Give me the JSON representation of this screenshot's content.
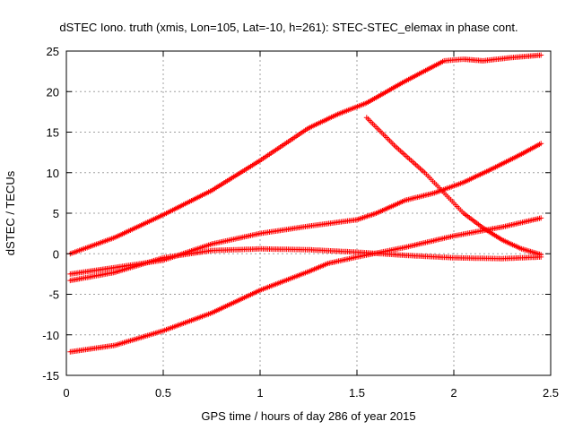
{
  "chart_data": {
    "type": "scatter",
    "title": "dSTEC Iono. truth (xmis, Lon=105, Lat=-10, h=261): STEC-STEC_elemax in phase cont.",
    "xlabel": "GPS time / hours of day 286 of year 2015",
    "ylabel": "dSTEC  / TECUs",
    "xlim": [
      0,
      2.5
    ],
    "ylim": [
      -15,
      25
    ],
    "xticks": [
      "0",
      "0.5",
      "1",
      "1.5",
      "2",
      "2.5"
    ],
    "yticks": [
      "-15",
      "-10",
      "-5",
      "0",
      "5",
      "10",
      "15",
      "20",
      "25"
    ],
    "grid": true,
    "marker": "+",
    "color": "#ff0000",
    "series": [
      {
        "x": [
          0.02,
          0.25,
          0.5,
          0.75,
          1.0,
          1.25,
          1.4,
          1.55,
          1.75,
          1.95,
          2.05,
          2.15,
          2.3,
          2.45
        ],
        "values": [
          0,
          2,
          4.8,
          7.8,
          11.5,
          15.5,
          17.2,
          18.6,
          21.3,
          23.8,
          24,
          23.8,
          24.2,
          24.5
        ]
      },
      {
        "x": [
          0.02,
          0.25,
          0.5,
          0.75,
          1.0,
          1.25,
          1.5,
          1.6,
          1.75,
          1.9,
          2.05,
          2.2,
          2.35,
          2.45
        ],
        "values": [
          -2.5,
          -1.7,
          -0.8,
          1.2,
          2.5,
          3.4,
          4.2,
          5,
          6.6,
          7.5,
          8.8,
          10.5,
          12.3,
          13.6
        ]
      },
      {
        "x": [
          0.02,
          0.25,
          0.5,
          0.75,
          1.0,
          1.25,
          1.5,
          1.75,
          2.0,
          2.25,
          2.45
        ],
        "values": [
          -3.3,
          -2.3,
          -0.5,
          0.4,
          0.6,
          0.5,
          0.2,
          -0.2,
          -0.5,
          -0.6,
          -0.4
        ]
      },
      {
        "x": [
          0.02,
          0.25,
          0.5,
          0.75,
          1.0,
          1.25,
          1.35,
          1.5,
          1.75,
          2.0,
          2.25,
          2.45
        ],
        "values": [
          -12.1,
          -11.3,
          -9.5,
          -7.3,
          -4.5,
          -2.2,
          -1.2,
          -0.4,
          0.8,
          2.2,
          3.3,
          4.4
        ]
      },
      {
        "x": [
          1.55,
          1.7,
          1.85,
          1.95,
          2.05,
          2.15,
          2.25,
          2.35,
          2.45
        ],
        "values": [
          16.8,
          13.2,
          10,
          7.5,
          5,
          3.2,
          1.7,
          0.6,
          -0.1
        ]
      }
    ]
  }
}
